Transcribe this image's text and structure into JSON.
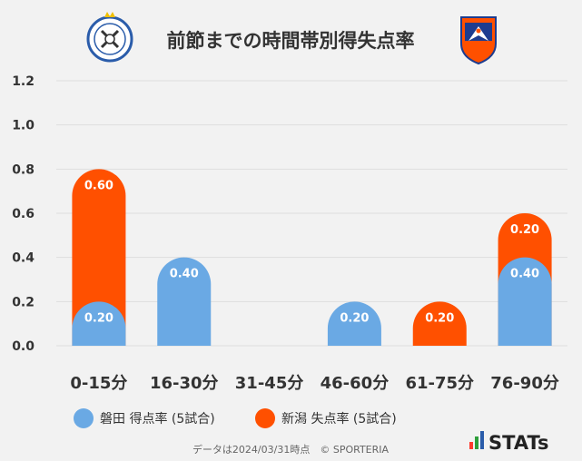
{
  "chart_data": {
    "type": "bar",
    "stacked": true,
    "title": "前節までの時間帯別得失点率",
    "categories": [
      "0-15分",
      "16-30分",
      "31-45分",
      "46-60分",
      "61-75分",
      "76-90分"
    ],
    "series": [
      {
        "name": "磐田 得点率 (5試合)",
        "color": "#6aa9e4",
        "values": [
          0.2,
          0.4,
          0.0,
          0.2,
          0.0,
          0.4
        ],
        "labels": [
          "0.20",
          "0.40",
          "",
          "0.20",
          "",
          "0.40"
        ]
      },
      {
        "name": "新潟 失点率 (5試合)",
        "color": "#ff5000",
        "values": [
          0.6,
          0.0,
          0.0,
          0.0,
          0.2,
          0.2
        ],
        "labels": [
          "0.60",
          "",
          "",
          "",
          "0.20",
          "0.20"
        ]
      }
    ],
    "ylim": [
      0,
      1.2
    ],
    "yticks": [
      "0.0",
      "0.2",
      "0.4",
      "0.6",
      "0.8",
      "1.0",
      "1.2"
    ],
    "grid": true,
    "legend": "bottom"
  },
  "footer": {
    "note": "データは2024/03/31時点　© SPORTERIA",
    "brand": "STATs"
  },
  "logos": {
    "left": "jubilo-iwata-crest-icon",
    "right": "albirex-niigata-crest-icon"
  }
}
